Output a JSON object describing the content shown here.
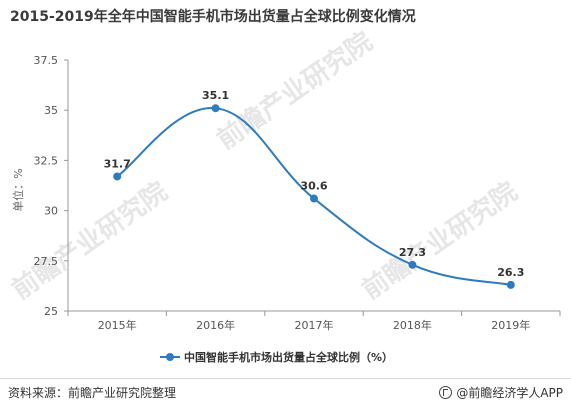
{
  "title": "2015-2019年全年中国智能手机市场出货量占全球比例变化情况",
  "footer": {
    "source": "资料来源：前瞻产业研究院整理",
    "brand": "@前瞻经济学人APP"
  },
  "watermark": "前瞻产业研究院",
  "colors": {
    "series": "#2e7bbf",
    "axis": "#999999",
    "grid": "#e6e6e6"
  },
  "chart_data": {
    "type": "line",
    "title": "2015-2019年全年中国智能手机市场出货量占全球比例变化情况",
    "ylabel": "单位：%",
    "xlabel": "",
    "categories": [
      "2015年",
      "2016年",
      "2017年",
      "2018年",
      "2019年"
    ],
    "series": [
      {
        "name": "中国智能手机市场出货量占全球比例（%）",
        "values": [
          31.7,
          35.1,
          30.6,
          27.3,
          26.3
        ]
      }
    ],
    "data_labels": [
      "31.7",
      "35.1",
      "30.6",
      "27.3",
      "26.3"
    ],
    "yticks": [
      "25",
      "27.5",
      "30",
      "32.5",
      "35",
      "37.5"
    ],
    "ylim": [
      25,
      37.5
    ],
    "smooth": true,
    "grid": false,
    "legend_position": "bottom"
  }
}
